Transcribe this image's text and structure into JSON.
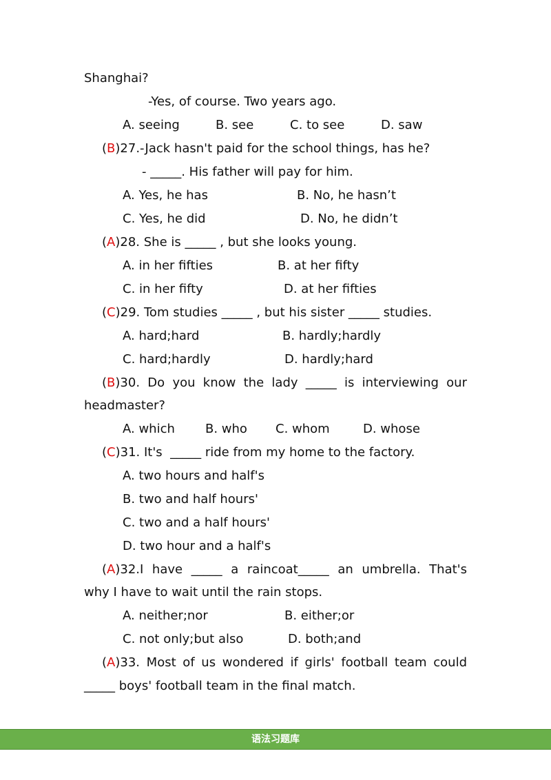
{
  "lines": [
    "Shanghai?",
    "-Yes, of course. Two years ago.",
    "A. seeing",
    "B. see",
    "C. to see",
    "D. saw",
    "27.-Jack hasn't paid for the school things, has he?",
    "- _____. His father will pay for him.",
    "A. Yes, he has",
    "B. No, he hasn’t",
    "C. Yes, he did",
    "D. No, he didn’t",
    "28. She is _____ , but she looks young.",
    "A. in her fifties",
    "B. at her fifty",
    "C. in her fifty",
    "D. at her fifties",
    "29. Tom studies _____ , but his sister _____ studies.",
    "A. hard;hard",
    "B. hardly;hardly",
    "C. hard;hardly",
    "D. hardly;hard",
    "30. Do you know the lady _____ is interviewing our",
    "headmaster?",
    "A. which",
    "B. who",
    "C. whom",
    "D. whose",
    "31. It's  _____ ride from my home to the factory.",
    "A. two hours and half's",
    "B. two and half hours'",
    "C. two and a half hours'",
    "D. two hour and a half's",
    "32.I have _____ a raincoat_____ an umbrella. That's",
    "why I have to wait until the rain stops.",
    "A. neither;nor",
    "B. either;or",
    "C. not only;but also",
    "D. both;and",
    "33. Most of us wondered if girls' football team could",
    "_____ boys' football team in the final match."
  ],
  "answers": [
    "B",
    "A",
    "C",
    "B",
    "C",
    "A",
    "A"
  ],
  "paren_open": "(",
  "paren_close": ")",
  "footer": "语法习题库"
}
